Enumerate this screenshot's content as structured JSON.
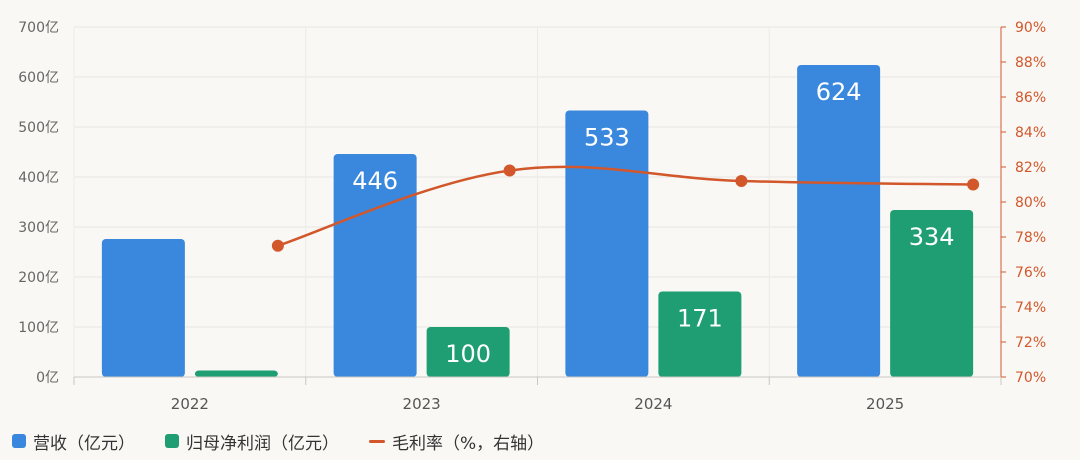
{
  "chart_data": {
    "type": "bar",
    "categories": [
      "2022",
      "2023",
      "2024",
      "2025"
    ],
    "series": [
      {
        "name": "营收（亿元）",
        "type": "bar",
        "axis": "left",
        "color": "#3a88de",
        "values": [
          276,
          446,
          533,
          624
        ],
        "labels": [
          "",
          "446",
          "533",
          "624"
        ]
      },
      {
        "name": "归母净利润（亿元）",
        "type": "bar",
        "axis": "left",
        "color": "#1f9e74",
        "values": [
          13,
          100,
          171,
          334
        ],
        "labels": [
          "",
          "100",
          "171",
          "334"
        ]
      },
      {
        "name": "毛利率（%，右轴）",
        "type": "line",
        "axis": "right",
        "color": "#d2572b",
        "values": [
          77.5,
          81.8,
          81.2,
          81.0
        ]
      }
    ],
    "y_left": {
      "ylim": [
        0,
        700
      ],
      "ticks": [
        "0亿",
        "100亿",
        "200亿",
        "300亿",
        "400亿",
        "500亿",
        "600亿",
        "700亿"
      ]
    },
    "y_right": {
      "ylim": [
        70,
        90
      ],
      "ticks": [
        "70%",
        "72%",
        "74%",
        "76%",
        "78%",
        "80%",
        "82%",
        "84%",
        "86%",
        "88%",
        "90%"
      ]
    },
    "grid": true,
    "legend_position": "bottom-left"
  }
}
